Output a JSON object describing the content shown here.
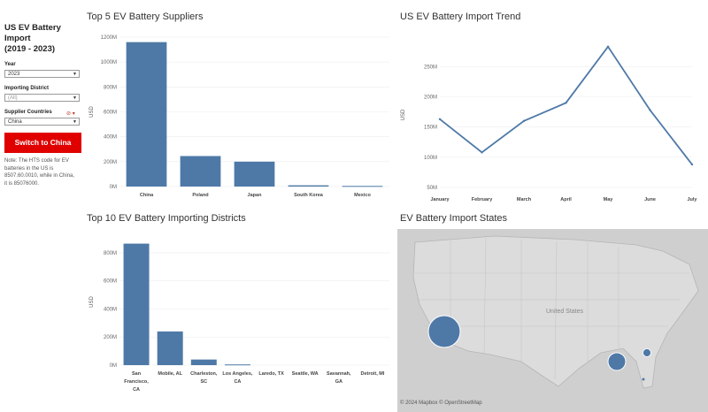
{
  "sidebar": {
    "title_line1": "US EV Battery Import",
    "title_line2": "(2019 - 2023)",
    "year_label": "Year",
    "year_value": "2023",
    "district_label": "Importing District",
    "district_value": "(All)",
    "countries_label": "Supplier Countries",
    "countries_value": "China",
    "switch_button": "Switch to China",
    "note_lines": [
      "Note: The HTS code for EV",
      "batteries in the US is",
      "8507.60.0010, while in China,",
      "it is 85076000."
    ]
  },
  "panels": {
    "suppliers_title": "Top 5 EV Battery Suppliers",
    "trend_title": "US EV Battery Import Trend",
    "districts_title": "Top 10 EV Battery Importing Districts",
    "states_title": "EV Battery Import States"
  },
  "map": {
    "attribution": "© 2024 Mapbox  © OpenStreetMap",
    "country_label": "United States"
  },
  "colors": {
    "bar": "#4e79a7",
    "button": "#e00000",
    "map_bg": "#cfcfcf"
  },
  "chart_data": [
    {
      "type": "bar",
      "title": "Top 5 EV Battery Suppliers",
      "ylabel": "USD",
      "categories": [
        "China",
        "Poland",
        "Japan",
        "South Korea",
        "Mexico"
      ],
      "values": [
        1160,
        245,
        200,
        10,
        5
      ],
      "ylim": [
        0,
        1200
      ],
      "yticks": [
        0,
        200,
        400,
        600,
        800,
        1000,
        1200
      ],
      "ytick_labels": [
        "0M",
        "200M",
        "400M",
        "600M",
        "800M",
        "1000M",
        "1200M"
      ]
    },
    {
      "type": "line",
      "title": "US EV Battery Import Trend",
      "ylabel": "USD",
      "x": [
        "January",
        "February",
        "March",
        "April",
        "May",
        "June",
        "July"
      ],
      "values": [
        163,
        108,
        160,
        190,
        283,
        178,
        88
      ],
      "ylim": [
        50,
        290
      ],
      "yticks": [
        50,
        100,
        150,
        200,
        250
      ],
      "ytick_labels": [
        "50M",
        "100M",
        "150M",
        "200M",
        "250M"
      ]
    },
    {
      "type": "bar",
      "title": "Top 10 EV Battery Importing Districts",
      "ylabel": "USD",
      "categories": [
        [
          "San",
          "Francisco,",
          "CA"
        ],
        [
          "Mobile, AL"
        ],
        [
          "Charleston,",
          "SC"
        ],
        [
          "Los Angeles,",
          "CA"
        ],
        [
          "Laredo, TX"
        ],
        [
          "Seattle, WA"
        ],
        [
          "Savannah,",
          "GA"
        ],
        [
          "Detroit, MI"
        ]
      ],
      "values": [
        865,
        240,
        40,
        5,
        0,
        0,
        0,
        0
      ],
      "ylim": [
        0,
        900
      ],
      "yticks": [
        0,
        200,
        400,
        600,
        800
      ],
      "ytick_labels": [
        "0M",
        "200M",
        "400M",
        "600M",
        "800M"
      ]
    }
  ]
}
